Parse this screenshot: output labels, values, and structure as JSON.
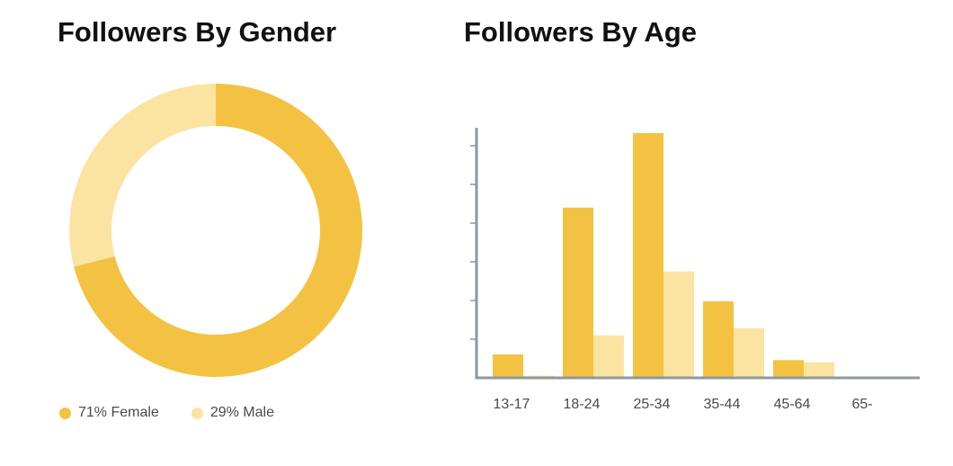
{
  "colors": {
    "female": "#F4C242",
    "male": "#FBE4A2",
    "axis": "#8f989e"
  },
  "gender": {
    "title": "Followers By Gender",
    "legend": [
      {
        "label": "71% Female",
        "color": "#F4C242"
      },
      {
        "label": "29% Male",
        "color": "#FBE4A2"
      }
    ]
  },
  "age": {
    "title": "Followers By Age"
  },
  "chart_data": [
    {
      "type": "pie",
      "title": "Followers By Gender",
      "labels": [
        "Female",
        "Male"
      ],
      "values": [
        71,
        29
      ],
      "legend_labels": [
        "71% Female",
        "29% Male"
      ],
      "donut": true,
      "legend": "bottom-left"
    },
    {
      "type": "bar",
      "title": "Followers By Age",
      "categories": [
        "13-17",
        "18-24",
        "25-34",
        "35-44",
        "45-64",
        "65-"
      ],
      "series": [
        {
          "values": [
            3.3,
            24.0,
            34.5,
            10.8,
            2.5,
            0
          ]
        },
        {
          "values": [
            0.3,
            6.0,
            15.0,
            7.0,
            2.2,
            0
          ]
        }
      ],
      "ylim": [
        0,
        35
      ],
      "grid": false,
      "xlabel": "",
      "ylabel": ""
    }
  ]
}
